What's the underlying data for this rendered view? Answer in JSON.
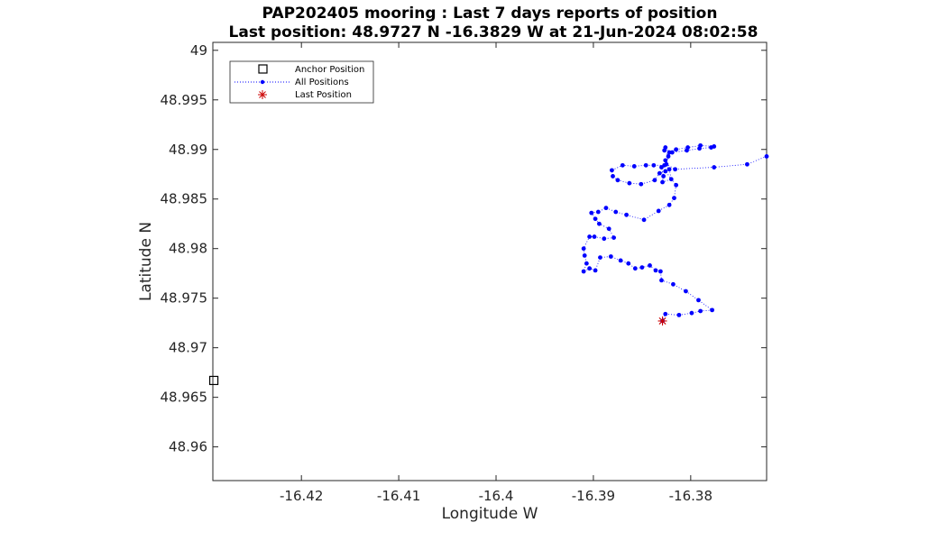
{
  "chart_data": {
    "type": "scatter",
    "title": "PAP202405 mooring : Last 7 days reports of position",
    "subtitle": "Last position: 48.9727 N -16.3829 W at 21-Jun-2024 08:02:58",
    "xlabel": "Longitude W",
    "ylabel": "Latitude  N",
    "xlim": [
      -16.4291,
      -16.3722
    ],
    "ylim": [
      48.9566,
      49.0008
    ],
    "xticks": [
      -16.42,
      -16.41,
      -16.4,
      -16.39,
      -16.38
    ],
    "xtick_labels": [
      "-16.42",
      "-16.41",
      "-16.4",
      "-16.39",
      "-16.38"
    ],
    "yticks": [
      48.96,
      48.965,
      48.97,
      48.975,
      48.98,
      48.985,
      48.99,
      48.995,
      49
    ],
    "ytick_labels": [
      "48.96",
      "48.965",
      "48.97",
      "48.975",
      "48.98",
      "48.985",
      "48.99",
      "48.995",
      "49"
    ],
    "grid": false,
    "legend_placement": "top-left",
    "legend": [
      {
        "label": "Anchor Position",
        "marker": "square",
        "color": "#000000"
      },
      {
        "label": "All Positions",
        "marker": "dot",
        "linestyle": "dotted",
        "color": "#0000ff"
      },
      {
        "label": "Last Position",
        "marker": "asterisk",
        "color": "#cc0000"
      }
    ],
    "series": [
      {
        "name": "Anchor Position",
        "marker": "square",
        "color": "#000000",
        "points": [
          [
            -16.429,
            48.9667
          ]
        ]
      },
      {
        "name": "All Positions",
        "marker": "dot",
        "linestyle": "dotted",
        "color": "#0000ff",
        "points": [
          [
            -16.3722,
            48.9893
          ],
          [
            -16.3742,
            48.9885
          ],
          [
            -16.3776,
            48.9882
          ],
          [
            -16.3816,
            48.988
          ],
          [
            -16.3825,
            48.9885
          ],
          [
            -16.3823,
            48.9893
          ],
          [
            -16.3827,
            48.9899
          ],
          [
            -16.3826,
            48.9902
          ],
          [
            -16.3822,
            48.9897
          ],
          [
            -16.3815,
            48.99
          ],
          [
            -16.3803,
            48.9902
          ],
          [
            -16.379,
            48.9904
          ],
          [
            -16.3776,
            48.9903
          ],
          [
            -16.3779,
            48.9902
          ],
          [
            -16.3791,
            48.9901
          ],
          [
            -16.3804,
            48.9899
          ],
          [
            -16.3819,
            48.9897
          ],
          [
            -16.3826,
            48.9889
          ],
          [
            -16.383,
            48.9882
          ],
          [
            -16.3828,
            48.9873
          ],
          [
            -16.3829,
            48.9867
          ],
          [
            -16.382,
            48.987
          ],
          [
            -16.3822,
            48.988
          ],
          [
            -16.3827,
            48.9884
          ],
          [
            -16.3838,
            48.9884
          ],
          [
            -16.3846,
            48.9884
          ],
          [
            -16.3858,
            48.9883
          ],
          [
            -16.387,
            48.9884
          ],
          [
            -16.3881,
            48.9879
          ],
          [
            -16.388,
            48.9873
          ],
          [
            -16.3875,
            48.9869
          ],
          [
            -16.3863,
            48.9866
          ],
          [
            -16.3851,
            48.9865
          ],
          [
            -16.3837,
            48.9869
          ],
          [
            -16.3832,
            48.9876
          ],
          [
            -16.3826,
            48.9878
          ],
          [
            -16.3815,
            48.9864
          ],
          [
            -16.3817,
            48.9851
          ],
          [
            -16.3822,
            48.9844
          ],
          [
            -16.3833,
            48.9838
          ],
          [
            -16.3848,
            48.9829
          ],
          [
            -16.3866,
            48.9834
          ],
          [
            -16.3877,
            48.9837
          ],
          [
            -16.3887,
            48.9841
          ],
          [
            -16.3895,
            48.9837
          ],
          [
            -16.3902,
            48.9836
          ],
          [
            -16.3898,
            48.983
          ],
          [
            -16.3894,
            48.9825
          ],
          [
            -16.3884,
            48.982
          ],
          [
            -16.3879,
            48.9811
          ],
          [
            -16.3889,
            48.981
          ],
          [
            -16.3899,
            48.9812
          ],
          [
            -16.3904,
            48.9812
          ],
          [
            -16.391,
            48.98
          ],
          [
            -16.3909,
            48.9793
          ],
          [
            -16.3907,
            48.9785
          ],
          [
            -16.391,
            48.9777
          ],
          [
            -16.3904,
            48.978
          ],
          [
            -16.3898,
            48.9778
          ],
          [
            -16.3893,
            48.9791
          ],
          [
            -16.3882,
            48.9792
          ],
          [
            -16.3872,
            48.9788
          ],
          [
            -16.3864,
            48.9785
          ],
          [
            -16.3857,
            48.978
          ],
          [
            -16.385,
            48.9781
          ],
          [
            -16.3842,
            48.9783
          ],
          [
            -16.3836,
            48.9778
          ],
          [
            -16.3831,
            48.9777
          ],
          [
            -16.383,
            48.9768
          ],
          [
            -16.3818,
            48.9764
          ],
          [
            -16.3805,
            48.9757
          ],
          [
            -16.3792,
            48.9748
          ],
          [
            -16.3778,
            48.9738
          ],
          [
            -16.379,
            48.9737
          ],
          [
            -16.3799,
            48.9735
          ],
          [
            -16.3812,
            48.9733
          ],
          [
            -16.3826,
            48.9734
          ],
          [
            -16.3829,
            48.9727
          ]
        ]
      },
      {
        "name": "Last Position",
        "marker": "asterisk",
        "color": "#cc0000",
        "points": [
          [
            -16.3829,
            48.9727
          ]
        ]
      }
    ]
  }
}
